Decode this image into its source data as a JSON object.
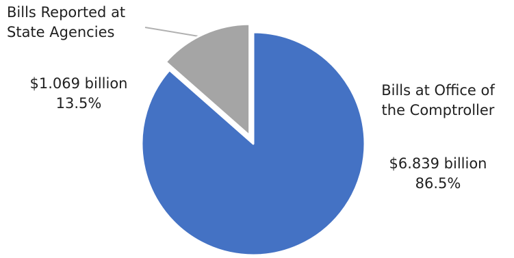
{
  "chart_data": {
    "type": "pie",
    "title": "",
    "slices": [
      {
        "label_lines": [
          "Bills at Office of",
          "the Comptroller"
        ],
        "value": 6.839,
        "value_text": "$6.839 billion",
        "percent": 86.5,
        "percent_text": "86.5%",
        "color": "#4472c4"
      },
      {
        "label_lines": [
          "Bills Reported at",
          "State Agencies"
        ],
        "value": 1.069,
        "value_text": "$1.069 billion",
        "percent": 13.5,
        "percent_text": "13.5%",
        "color": "#a5a5a5",
        "exploded": true
      }
    ],
    "legend": "none",
    "leader_line_color": "#b0b0b0"
  }
}
